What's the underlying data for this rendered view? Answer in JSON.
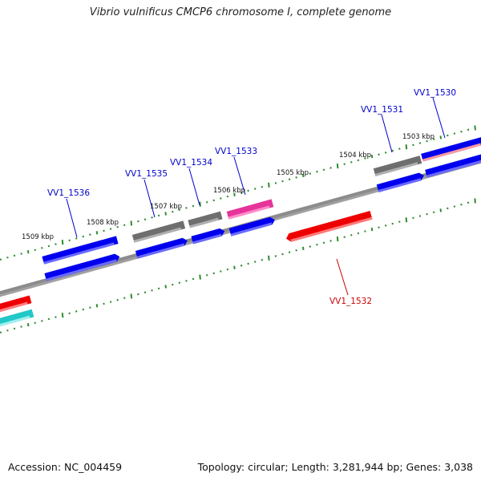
{
  "title": "Vibrio vulnificus CMCP6 chromosome I, complete genome",
  "footer": {
    "accession": "Accession: NC_004459",
    "topology": "Topology: circular; Length: 3,281,944 bp; Genes: 3,038"
  },
  "colors": {
    "backbone": "#8c8c8c",
    "tick": "#2e8b2e",
    "forward_blue": "#0000ee",
    "reverse_red": "#ee0000",
    "gray_gene": "#6e6e6e",
    "pink_gene": "#e6339a",
    "cyan_gene": "#22c8c8",
    "label_blue": "#0000cc",
    "label_red": "#cc0000"
  },
  "scale_labels": [
    "1503 kbp",
    "1504 kbp",
    "1505 kbp",
    "1506 kbp",
    "1507 kbp",
    "1508 kbp",
    "1509 kbp"
  ],
  "gene_labels": [
    {
      "name": "VV1_1530",
      "color": "label_blue"
    },
    {
      "name": "VV1_1531",
      "color": "label_blue"
    },
    {
      "name": "VV1_1532",
      "color": "label_red"
    },
    {
      "name": "VV1_1533",
      "color": "label_blue"
    },
    {
      "name": "VV1_1534",
      "color": "label_blue"
    },
    {
      "name": "VV1_1535",
      "color": "label_blue"
    },
    {
      "name": "VV1_1536",
      "color": "label_blue"
    }
  ]
}
